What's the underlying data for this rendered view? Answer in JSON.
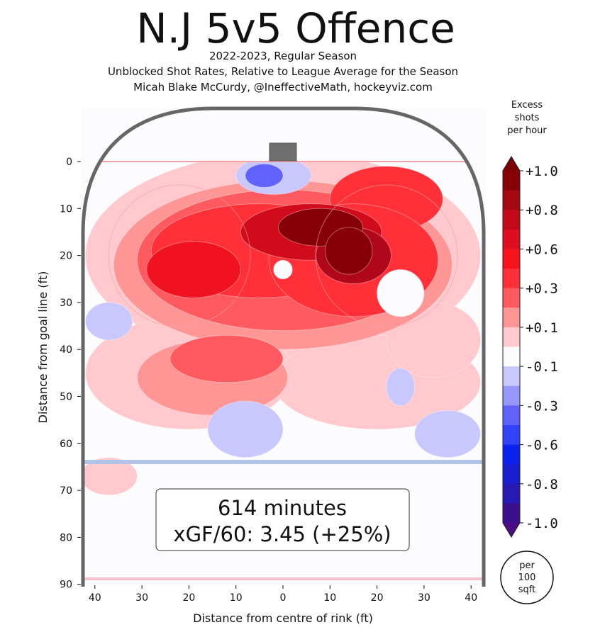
{
  "chart_data": {
    "type": "heatmap",
    "title": "N.J 5v5 Offence",
    "subtitle_lines": [
      "2022-2023, Regular Season",
      "Unblocked Shot Rates, Relative to League Average for the Season",
      "Micah Blake McCurdy, @IneffectiveMath, hockeyviz.com"
    ],
    "xlabel": "Distance from centre of rink (ft)",
    "ylabel": "Distance from goal line (ft)",
    "xlim": [
      -42,
      42
    ],
    "ylim": [
      0,
      90
    ],
    "xticks": [
      -40,
      -30,
      -20,
      -10,
      0,
      10,
      20,
      30,
      40
    ],
    "xtick_labels": [
      "40",
      "30",
      "20",
      "10",
      "0",
      "10",
      "20",
      "30",
      "40"
    ],
    "yticks": [
      0,
      10,
      20,
      30,
      40,
      50,
      60,
      70,
      80,
      90
    ],
    "ytick_labels": [
      "0",
      "10",
      "20",
      "30",
      "40",
      "50",
      "60",
      "70",
      "80",
      "90"
    ],
    "colorbar": {
      "title_lines": [
        "Excess",
        "shots",
        "per hour"
      ],
      "tick_labels": [
        "+1.0",
        "+0.8",
        "+0.6",
        "+0.3",
        "+0.1",
        "-0.1",
        "-0.3",
        "-0.6",
        "-0.8",
        "-1.0"
      ],
      "band_colors": [
        "#870008",
        "#a60812",
        "#c40a1a",
        "#de0e1e",
        "#f7121e",
        "#ff3038",
        "#ff5a60",
        "#ff9696",
        "#ffc9cd",
        "#fcfcff",
        "#c8c8ff",
        "#9898fc",
        "#6062fa",
        "#3042fa",
        "#0b22ee",
        "#1a1ece",
        "#2818b4",
        "#3c108c"
      ],
      "top_color": "#7a0006",
      "bottom_color": "#4a0c80"
    },
    "regions": [
      {
        "x": 0,
        "y": 20,
        "rx": 42,
        "ry": 22,
        "value": 0.1
      },
      {
        "x": -20,
        "y": 45,
        "rx": 22,
        "ry": 12,
        "value": 0.1
      },
      {
        "x": 20,
        "y": 47,
        "rx": 22,
        "ry": 10,
        "value": 0.1
      },
      {
        "x": 32,
        "y": 38,
        "rx": 10,
        "ry": 8,
        "value": 0.1
      },
      {
        "x": -37,
        "y": 67,
        "rx": 6,
        "ry": 4,
        "value": 0.1
      },
      {
        "x": 0,
        "y": 22,
        "rx": 36,
        "ry": 18,
        "value": 0.2
      },
      {
        "x": -15,
        "y": 46,
        "rx": 16,
        "ry": 8,
        "value": 0.2
      },
      {
        "x": 0,
        "y": 21,
        "rx": 31,
        "ry": 15,
        "value": 0.3
      },
      {
        "x": -12,
        "y": 42,
        "rx": 12,
        "ry": 5,
        "value": 0.3
      },
      {
        "x": 22,
        "y": 8,
        "rx": 12,
        "ry": 7,
        "value": 0.5
      },
      {
        "x": -5,
        "y": 19,
        "rx": 23,
        "ry": 10,
        "value": 0.5
      },
      {
        "x": 15,
        "y": 21,
        "rx": 18,
        "ry": 12,
        "value": 0.5
      },
      {
        "x": -19,
        "y": 23,
        "rx": 10,
        "ry": 6,
        "value": 0.6
      },
      {
        "x": 6,
        "y": 15,
        "rx": 15,
        "ry": 6,
        "value": 0.7
      },
      {
        "x": 15,
        "y": 20,
        "rx": 8,
        "ry": 6,
        "value": 0.8
      },
      {
        "x": 8,
        "y": 14,
        "rx": 9,
        "ry": 4,
        "value": 1.0
      },
      {
        "x": 14,
        "y": 19,
        "rx": 5,
        "ry": 5,
        "value": 1.0
      },
      {
        "x": 25,
        "y": 28,
        "rx": 5,
        "ry": 5,
        "value": 0.0
      },
      {
        "x": 0,
        "y": 23,
        "rx": 2,
        "ry": 2,
        "value": 0.0
      },
      {
        "x": -2,
        "y": 3,
        "rx": 8,
        "ry": 4,
        "value": -0.1
      },
      {
        "x": -4,
        "y": 3,
        "rx": 4,
        "ry": 2.5,
        "value": -0.3
      },
      {
        "x": -37,
        "y": 34,
        "rx": 5,
        "ry": 4,
        "value": -0.1
      },
      {
        "x": -8,
        "y": 57,
        "rx": 8,
        "ry": 6,
        "value": -0.1
      },
      {
        "x": 35,
        "y": 58,
        "rx": 7,
        "ry": 5,
        "value": -0.1
      },
      {
        "x": 25,
        "y": 48,
        "rx": 3,
        "ry": 4,
        "value": -0.1
      }
    ],
    "annotation": {
      "minutes": "614 minutes",
      "xgf": "xGF/60: 3.45 (+25%)"
    },
    "unit_badge_lines": [
      "per",
      "100",
      "sqft"
    ]
  }
}
